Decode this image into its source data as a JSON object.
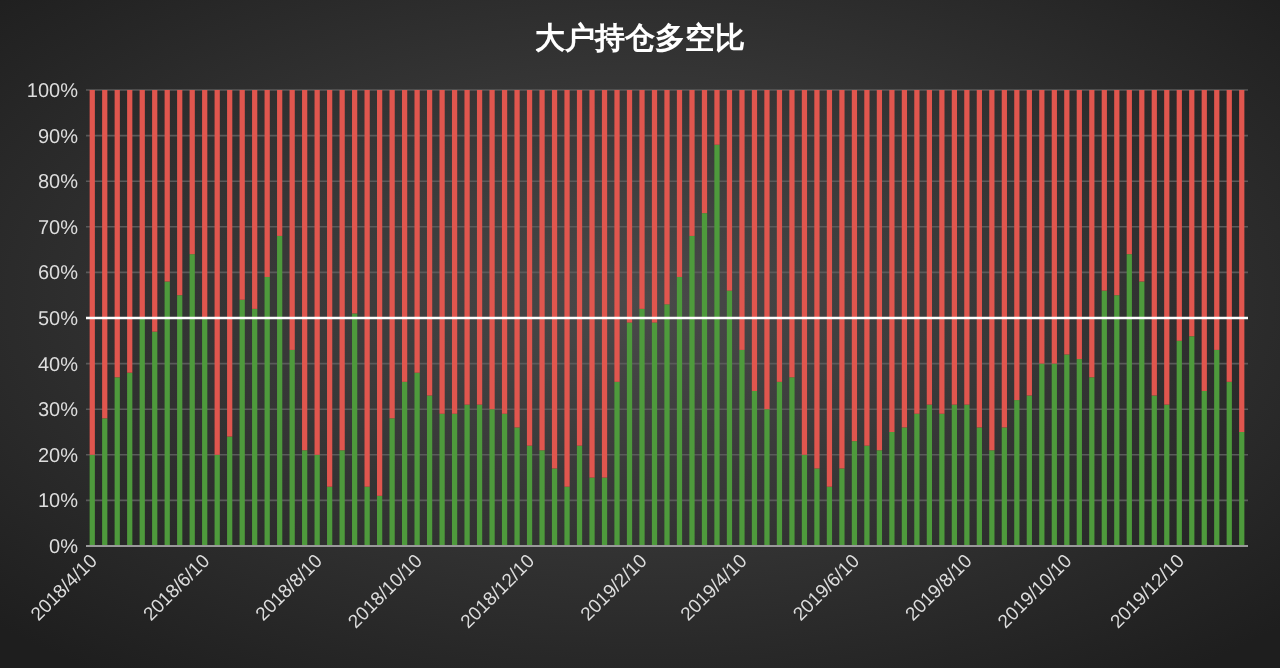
{
  "chart_data": {
    "type": "bar",
    "title": "大户持仓多空比",
    "stacked": true,
    "categories": [
      "2018/4/10",
      null,
      null,
      null,
      null,
      null,
      null,
      null,
      null,
      "2018/6/10",
      null,
      null,
      null,
      null,
      null,
      null,
      null,
      null,
      "2018/8/10",
      null,
      null,
      null,
      null,
      null,
      null,
      null,
      "2018/10/10",
      null,
      null,
      null,
      null,
      null,
      null,
      null,
      null,
      "2018/12/10",
      null,
      null,
      null,
      null,
      null,
      null,
      null,
      null,
      "2019/2/10",
      null,
      null,
      null,
      null,
      null,
      null,
      null,
      "2019/4/10",
      null,
      null,
      null,
      null,
      null,
      null,
      null,
      null,
      "2019/6/10",
      null,
      null,
      null,
      null,
      null,
      null,
      null,
      null,
      "2019/8/10",
      null,
      null,
      null,
      null,
      null,
      null,
      null,
      "2019/10/10",
      null,
      null,
      null,
      null,
      null,
      null,
      null,
      null,
      "2019/12/10",
      null,
      null,
      null,
      null,
      null
    ],
    "series": [
      {
        "color": "#4e9a3c",
        "values": [
          20,
          28,
          37,
          38,
          50,
          47,
          58,
          55,
          64,
          50,
          20,
          24,
          54,
          52,
          59,
          68,
          43,
          21,
          20,
          13,
          21,
          51,
          13,
          11,
          28,
          36,
          38,
          33,
          29,
          29,
          31,
          31,
          30,
          29,
          26,
          22,
          21,
          17,
          13,
          22,
          15,
          15,
          36,
          49,
          52,
          49,
          53,
          59,
          68,
          73,
          88,
          56,
          43,
          34,
          30,
          36,
          37,
          20,
          17,
          13,
          17,
          23,
          22,
          21,
          25,
          26,
          29,
          31,
          29,
          31,
          31,
          26,
          21,
          26,
          32,
          33,
          40,
          40,
          42,
          41,
          37,
          56,
          55,
          64,
          58,
          33,
          31,
          45,
          46,
          34,
          43,
          36,
          25
        ]
      },
      {
        "color": "#e0564e",
        "values": [
          80,
          72,
          63,
          62,
          50,
          53,
          42,
          45,
          36,
          50,
          80,
          76,
          46,
          48,
          41,
          32,
          57,
          79,
          80,
          87,
          79,
          49,
          87,
          89,
          72,
          64,
          62,
          67,
          71,
          71,
          69,
          69,
          70,
          71,
          74,
          78,
          79,
          83,
          87,
          78,
          85,
          85,
          64,
          51,
          48,
          51,
          47,
          41,
          32,
          27,
          12,
          44,
          57,
          66,
          70,
          64,
          63,
          80,
          83,
          87,
          83,
          77,
          78,
          79,
          75,
          74,
          71,
          69,
          71,
          69,
          69,
          74,
          79,
          74,
          68,
          67,
          60,
          60,
          58,
          59,
          63,
          44,
          45,
          36,
          42,
          67,
          69,
          55,
          54,
          66,
          57,
          64,
          75
        ]
      }
    ],
    "ylim": [
      0,
      100
    ],
    "yticks": [
      {
        "value": 0,
        "label": "0%"
      },
      {
        "value": 10,
        "label": "10%"
      },
      {
        "value": 20,
        "label": "20%"
      },
      {
        "value": 30,
        "label": "30%"
      },
      {
        "value": 40,
        "label": "40%"
      },
      {
        "value": 50,
        "label": "50%"
      },
      {
        "value": 60,
        "label": "60%"
      },
      {
        "value": 70,
        "label": "70%"
      },
      {
        "value": 80,
        "label": "80%"
      },
      {
        "value": 90,
        "label": "90%"
      },
      {
        "value": 100,
        "label": "100%"
      }
    ],
    "grid": "y",
    "ref_lines": [
      {
        "axis": "y",
        "value": 50,
        "color": "#ffffff"
      }
    ]
  }
}
